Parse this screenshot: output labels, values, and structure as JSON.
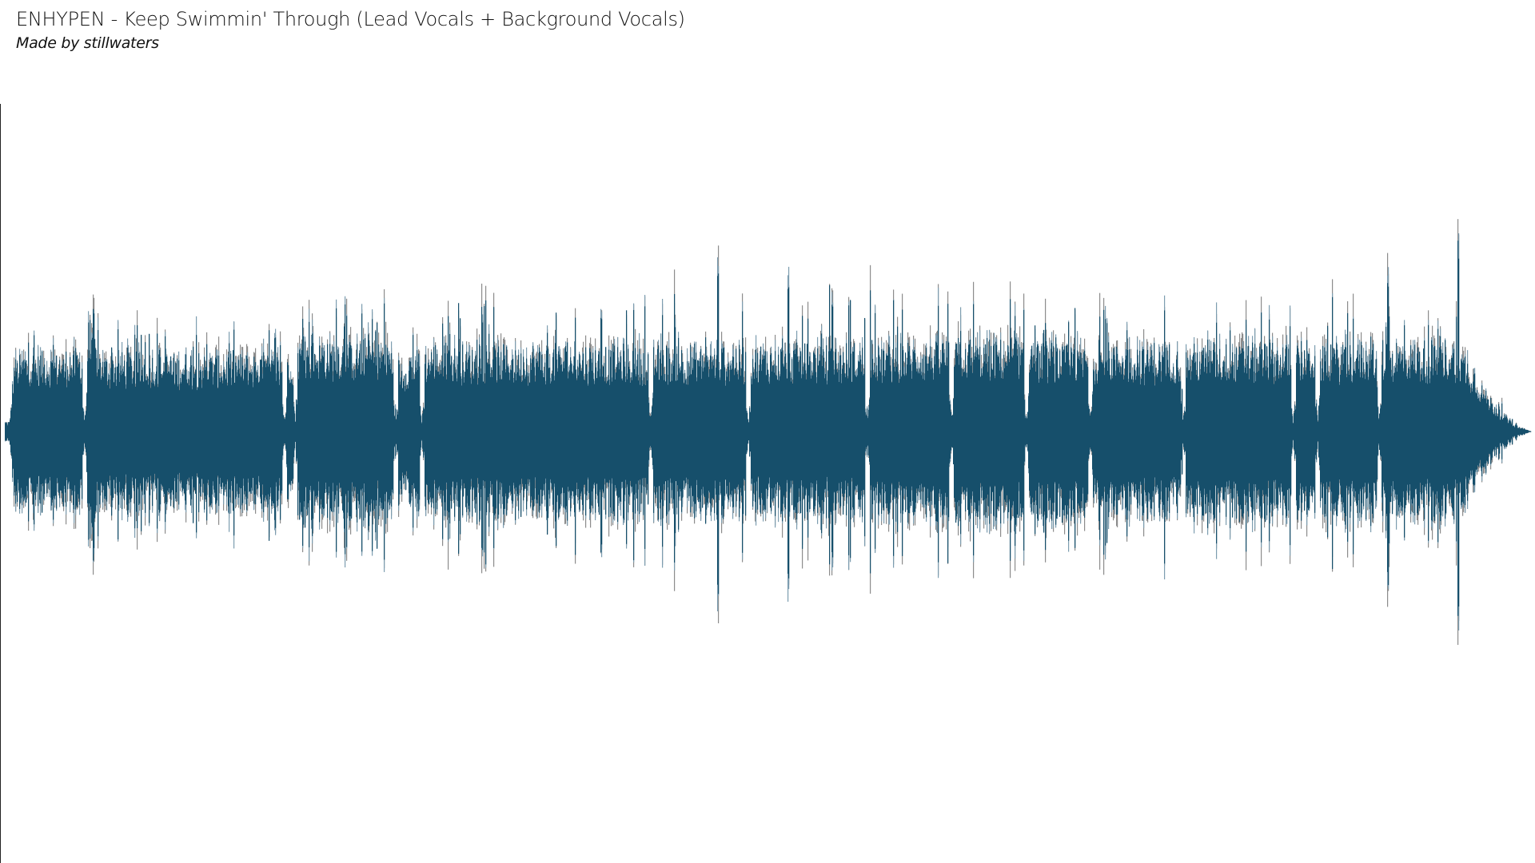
{
  "title": "ENHYPEN - Keep Swimmin' Through (Lead Vocals + Background Vocals)",
  "subtitle": "Made by stillwaters",
  "chart_data": {
    "type": "area",
    "description_kind": "audio waveform",
    "ylim": [
      -1,
      1
    ],
    "grid": false,
    "legend": "none",
    "colors": {
      "main": "#164f6b",
      "secondary": "#7d9db0",
      "tertiary": "#8c8c8c"
    },
    "envelope": {
      "t": [
        0,
        0.003,
        0.006,
        0.05,
        0.055,
        0.065,
        0.18,
        0.19,
        0.2,
        0.25,
        0.26,
        0.27,
        0.42,
        0.47,
        0.5,
        0.56,
        0.62,
        0.67,
        0.7,
        0.95,
        0.96,
        0.97,
        0.98,
        0.99,
        1.0
      ],
      "body": [
        0.05,
        0.05,
        0.38,
        0.4,
        0.5,
        0.38,
        0.38,
        0.45,
        0.45,
        0.45,
        0.35,
        0.42,
        0.42,
        0.42,
        0.42,
        0.42,
        0.45,
        0.45,
        0.42,
        0.44,
        0.35,
        0.2,
        0.1,
        0.03,
        0.0
      ],
      "peak": [
        0.06,
        0.06,
        0.52,
        0.5,
        0.6,
        0.5,
        0.52,
        0.6,
        0.6,
        0.62,
        0.5,
        0.63,
        0.63,
        0.75,
        0.68,
        0.7,
        0.65,
        0.63,
        0.63,
        0.65,
        0.5,
        0.3,
        0.15,
        0.05,
        0.0
      ]
    },
    "quiet_gaps": [
      0.052,
      0.183,
      0.19,
      0.256,
      0.273,
      0.423,
      0.487,
      0.565,
      0.62,
      0.669,
      0.711,
      0.772,
      0.844,
      0.86,
      0.9
    ],
    "spikes": [
      {
        "t": 0.467,
        "value": 0.77
      },
      {
        "t": 0.513,
        "value": 0.71
      },
      {
        "t": 0.952,
        "value": 0.89
      },
      {
        "t": 0.906,
        "value": 0.72
      },
      {
        "t": 0.058,
        "value": 0.6
      }
    ]
  }
}
